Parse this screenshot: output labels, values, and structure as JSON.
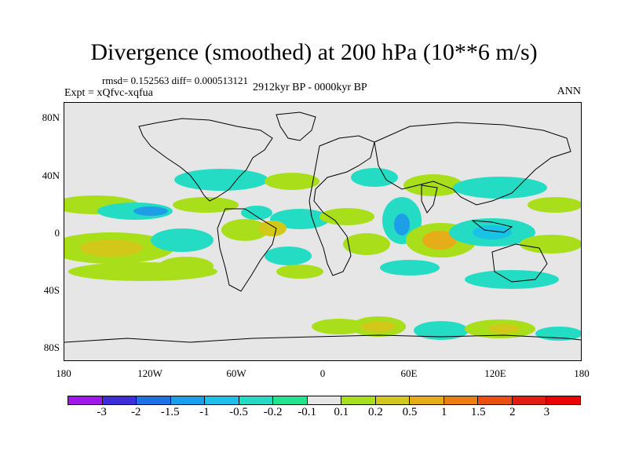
{
  "title": "Divergence (smoothed) at 200 hPa (10**6 m/s)",
  "stats": "rmsd= 0.152563 diff= 0.000513121",
  "expt": "Expt = xQfvc-xqfua",
  "period": "2912kyr BP - 0000kyr BP",
  "season": "ANN",
  "yaxis": [
    "80N",
    "40N",
    "0",
    "40S",
    "80S"
  ],
  "xaxis": [
    "180",
    "120W",
    "60W",
    "0",
    "60E",
    "120E",
    "180"
  ],
  "colorbar": {
    "labels": [
      "-3",
      "-2",
      "-1.5",
      "-1",
      "-0.5",
      "-0.2",
      "-0.1",
      "0.1",
      "0.2",
      "0.5",
      "1",
      "1.5",
      "2",
      "3"
    ],
    "colors": [
      "#9b1ae6",
      "#3d2ddd",
      "#2270e0",
      "#1f9ee8",
      "#18c3e6",
      "#24dcc4",
      "#1ee68e",
      "#e6e6e6",
      "#a8df1a",
      "#d2c81a",
      "#e6ad18",
      "#e67e16",
      "#e65014",
      "#e61a0e",
      "#ef0000"
    ]
  },
  "colors": {
    "background": "#e6e6e6",
    "coast": "#000000"
  }
}
